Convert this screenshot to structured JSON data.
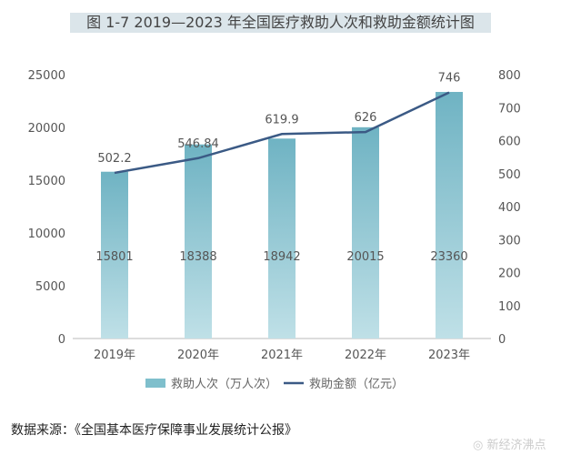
{
  "chart_data": {
    "type": "bar+line",
    "title": "图 1-7  2019—2023 年全国医疗救助人次和救助金额统计图",
    "categories": [
      "2019年",
      "2020年",
      "2021年",
      "2022年",
      "2023年"
    ],
    "series": [
      {
        "name": "救助人次（万人次）",
        "type": "bar",
        "axis": "left",
        "values": [
          15801,
          18388,
          18942,
          20015,
          23360
        ],
        "labels": [
          "15801",
          "18388",
          "18942",
          "20015",
          "23360"
        ],
        "color": "#7fbfcc"
      },
      {
        "name": "救助金额（亿元）",
        "type": "line",
        "axis": "right",
        "values": [
          502.2,
          546.84,
          619.9,
          626,
          746
        ],
        "labels": [
          "502.2",
          "546.84",
          "619.9",
          "626",
          "746"
        ],
        "color": "#3b5a85"
      }
    ],
    "left_axis": {
      "ylim": [
        0,
        25000
      ],
      "ticks": [
        "0",
        "5000",
        "10000",
        "15000",
        "20000",
        "25000"
      ]
    },
    "right_axis": {
      "ylim": [
        0,
        800
      ],
      "ticks": [
        "0",
        "100",
        "200",
        "300",
        "400",
        "500",
        "600",
        "700",
        "800"
      ]
    },
    "grid": false,
    "legend": "bottom"
  },
  "source": "数据来源：《全国基本医疗保障事业发展统计公报》",
  "watermark": "新经济沸点"
}
